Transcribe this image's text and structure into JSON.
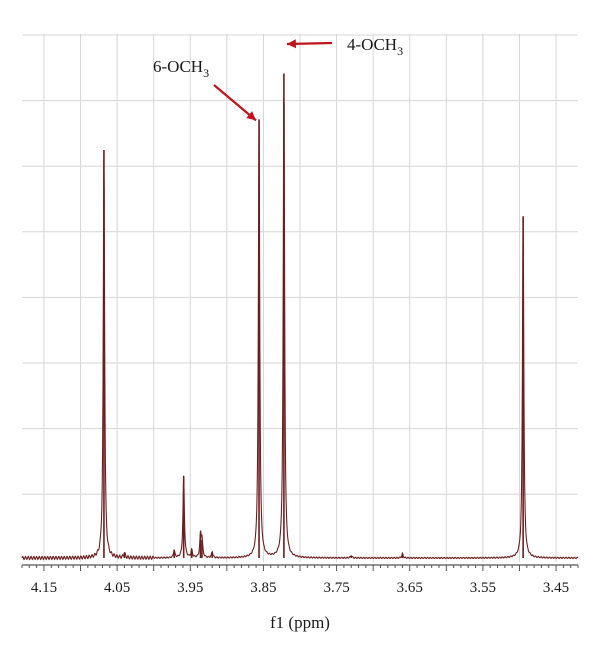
{
  "chart_data": {
    "type": "line",
    "xlabel": "f1 (ppm)",
    "ylabel": "",
    "xlim": [
      4.18,
      3.42
    ],
    "x_reversed": true,
    "grid": true,
    "tick_labels": [
      "4.15",
      "4.05",
      "3.95",
      "3.85",
      "3.75",
      "3.65",
      "3.55",
      "3.45"
    ],
    "series": [
      {
        "peaks": [
          {
            "x": 4.068,
            "y": 0.8
          },
          {
            "x": 4.04,
            "y": 0.01
          },
          {
            "x": 3.972,
            "y": 0.015
          },
          {
            "x": 3.959,
            "y": 0.16
          },
          {
            "x": 3.948,
            "y": 0.015
          },
          {
            "x": 3.936,
            "y": 0.045
          },
          {
            "x": 3.934,
            "y": 0.035
          },
          {
            "x": 3.92,
            "y": 0.012
          },
          {
            "x": 3.856,
            "y": 0.86
          },
          {
            "x": 3.822,
            "y": 0.95
          },
          {
            "x": 3.73,
            "y": 0.005
          },
          {
            "x": 3.66,
            "y": 0.008
          },
          {
            "x": 3.495,
            "y": 0.67
          }
        ]
      }
    ],
    "annotations": [
      {
        "text": "6-OCH",
        "subscript": "3",
        "target_x": 3.856
      },
      {
        "text": "4-OCH",
        "subscript": "3",
        "target_x": 3.822
      }
    ],
    "colors": {
      "trace": "#6b1f1f",
      "arrow": "#c0141b",
      "grid": "#d6d6d6",
      "axis": "#555555"
    }
  }
}
